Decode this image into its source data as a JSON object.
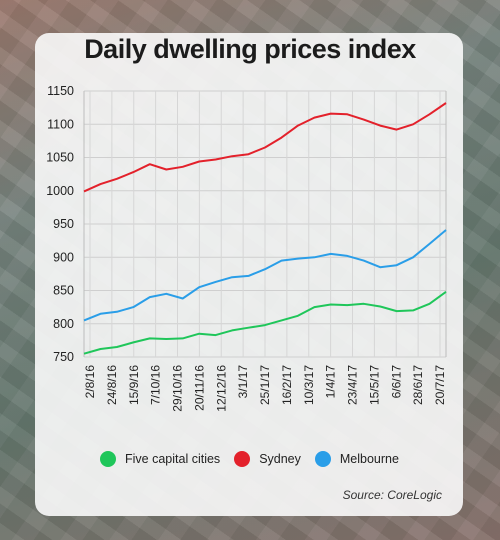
{
  "chart_data": {
    "type": "line",
    "title": "Daily dwelling prices index",
    "source": "Source: CoreLogic",
    "xlabel": "",
    "ylabel": "",
    "ylim": [
      750,
      1150
    ],
    "yticks": [
      750,
      800,
      850,
      900,
      950,
      1000,
      1050,
      1100,
      1150
    ],
    "x_ticks": [
      "2/8/16",
      "24/8/16",
      "15/9/16",
      "7/10/16",
      "29/10/16",
      "20/11/16",
      "12/12/16",
      "3/1/17",
      "25/1/17",
      "16/2/17",
      "10/3/17",
      "1/4/17",
      "23/4/17",
      "15/5/17",
      "6/6/17",
      "28/6/17",
      "20/7/17"
    ],
    "grid": true,
    "legend_position": "bottom",
    "series": [
      {
        "name": "Five capital cities",
        "color": "#1fc65a",
        "values": [
          755,
          762,
          765,
          772,
          778,
          777,
          778,
          785,
          783,
          790,
          794,
          798,
          805,
          812,
          825,
          829,
          828,
          830,
          826,
          819,
          820,
          830,
          848
        ]
      },
      {
        "name": "Sydney",
        "color": "#e3212b",
        "values": [
          999,
          1010,
          1018,
          1028,
          1040,
          1032,
          1036,
          1044,
          1047,
          1052,
          1055,
          1065,
          1080,
          1098,
          1110,
          1116,
          1115,
          1107,
          1098,
          1092,
          1100,
          1115,
          1132
        ]
      },
      {
        "name": "Melbourne",
        "color": "#2a9ee8",
        "values": [
          805,
          815,
          818,
          825,
          840,
          845,
          838,
          855,
          863,
          870,
          872,
          882,
          895,
          898,
          900,
          905,
          902,
          895,
          885,
          888,
          900,
          920,
          941
        ]
      }
    ]
  }
}
